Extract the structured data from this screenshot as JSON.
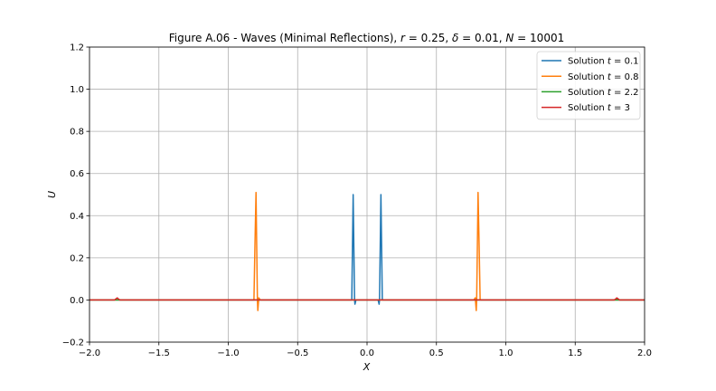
{
  "chart_data": {
    "type": "line",
    "title": "Figure A.06 - Waves (Minimal Reflections), r = 0.25, δ = 0.01, N = 10001",
    "title_parts": {
      "prefix": "Figure A.06 - Waves (Minimal Reflections), ",
      "r_sym": "r",
      "r_val": " = 0.25, ",
      "d_sym": "δ",
      "d_val": " = 0.01, ",
      "n_sym": "N",
      "n_val": " = 10001"
    },
    "xlabel": "X",
    "ylabel": "U",
    "xlim": [
      -2.0,
      2.0
    ],
    "ylim": [
      -0.2,
      1.2
    ],
    "xticks": [
      -2.0,
      -1.5,
      -1.0,
      -0.5,
      0.0,
      0.5,
      1.0,
      1.5,
      2.0
    ],
    "xtick_labels": [
      "−2.0",
      "−1.5",
      "−1.0",
      "−0.5",
      "0.0",
      "0.5",
      "1.0",
      "1.5",
      "2.0"
    ],
    "yticks": [
      -0.2,
      0.0,
      0.2,
      0.4,
      0.6,
      0.8,
      1.0,
      1.2
    ],
    "ytick_labels": [
      "−0.2",
      "0.0",
      "0.2",
      "0.4",
      "0.6",
      "0.8",
      "1.0",
      "1.2"
    ],
    "grid": true,
    "legend_position": "top-right",
    "series": [
      {
        "name": "Solution t = 0.1",
        "label_prefix": "Solution ",
        "label_var": "t",
        "label_val": " = 0.1",
        "color": "#1f77b4",
        "x": [
          -2.0,
          -0.12,
          -0.11,
          -0.105,
          -0.1,
          -0.095,
          -0.09,
          -0.087,
          -0.08,
          -0.06,
          0.06,
          0.08,
          0.087,
          0.09,
          0.095,
          0.1,
          0.105,
          0.11,
          0.12,
          2.0
        ],
        "y": [
          0.0,
          0.0,
          0.0,
          0.25,
          0.5,
          0.25,
          0.0,
          -0.02,
          0.0,
          0.0,
          0.0,
          0.0,
          -0.02,
          0.0,
          0.25,
          0.5,
          0.25,
          0.0,
          0.0,
          0.0
        ]
      },
      {
        "name": "Solution t = 0.8",
        "label_prefix": "Solution ",
        "label_var": "t",
        "label_val": " = 0.8",
        "color": "#ff7f0e",
        "x": [
          -2.0,
          -0.815,
          -0.808,
          -0.8,
          -0.795,
          -0.79,
          -0.787,
          -0.78,
          -0.77,
          -0.75,
          0.75,
          0.77,
          0.78,
          0.787,
          0.79,
          0.795,
          0.8,
          0.808,
          0.815,
          2.0
        ],
        "y": [
          0.0,
          0.0,
          0.25,
          0.51,
          0.25,
          0.0,
          -0.05,
          0.01,
          0.0,
          0.0,
          0.0,
          0.0,
          0.01,
          -0.05,
          0.0,
          0.25,
          0.51,
          0.25,
          0.0,
          0.0
        ]
      },
      {
        "name": "Solution t = 2.2",
        "label_prefix": "Solution ",
        "label_var": "t",
        "label_val": " = 2.2",
        "color": "#2ca02c",
        "x": [
          -2.0,
          -1.0,
          0.0,
          1.0,
          2.0
        ],
        "y": [
          0.0,
          0.0,
          0.0,
          0.0,
          0.0
        ]
      },
      {
        "name": "Solution t = 3",
        "label_prefix": "Solution ",
        "label_var": "t",
        "label_val": " = 3",
        "color": "#d62728",
        "x": [
          -2.0,
          -1.82,
          -1.81,
          -1.8,
          -1.79,
          -1.78,
          1.78,
          1.79,
          1.8,
          1.81,
          1.82,
          2.0
        ],
        "y": [
          0.0,
          0.0,
          0.005,
          0.01,
          0.004,
          0.0,
          0.0,
          0.004,
          0.01,
          0.005,
          0.0,
          0.0
        ]
      }
    ]
  }
}
